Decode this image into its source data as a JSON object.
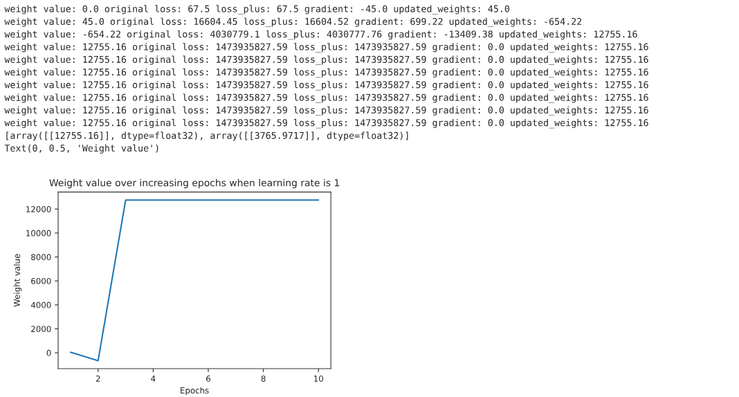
{
  "chart_data": {
    "type": "line",
    "title": "Weight value over increasing epochs when learning rate is 1",
    "xlabel": "Epochs",
    "ylabel": "Weight value",
    "x": [
      1,
      2,
      3,
      4,
      5,
      6,
      7,
      8,
      9,
      10
    ],
    "series": [
      {
        "color": "#1f77b4",
        "values": [
          45.0,
          -654.22,
          12755.16,
          12755.16,
          12755.16,
          12755.16,
          12755.16,
          12755.16,
          12755.16,
          12755.16
        ]
      }
    ],
    "xlim": [
      0.55,
      10.45
    ],
    "xticks": [
      2,
      4,
      6,
      8,
      10
    ],
    "ylim": [
      -1325,
      13425
    ],
    "yticks": [
      0,
      2000,
      4000,
      6000,
      8000,
      10000,
      12000
    ],
    "grid": false,
    "annotations": [
      "weight value: 0.0 original loss: 67.5 loss_plus: 67.5 gradient: -45.0 updated_weights: 45.0",
      "weight value: 45.0 original loss: 16604.45 loss_plus: 16604.52 gradient: 699.22 updated_weights: -654.22",
      "weight value: -654.22 original loss: 4030779.1 loss_plus: 4030777.76 gradient: -13409.38 updated_weights: 12755.16",
      "weight value: 12755.16 original loss: 1473935827.59 loss_plus: 1473935827.59 gradient: 0.0 updated_weights: 12755.16",
      "weight value: 12755.16 original loss: 1473935827.59 loss_plus: 1473935827.59 gradient: 0.0 updated_weights: 12755.16",
      "weight value: 12755.16 original loss: 1473935827.59 loss_plus: 1473935827.59 gradient: 0.0 updated_weights: 12755.16",
      "weight value: 12755.16 original loss: 1473935827.59 loss_plus: 1473935827.59 gradient: 0.0 updated_weights: 12755.16",
      "weight value: 12755.16 original loss: 1473935827.59 loss_plus: 1473935827.59 gradient: 0.0 updated_weights: 12755.16",
      "weight value: 12755.16 original loss: 1473935827.59 loss_plus: 1473935827.59 gradient: 0.0 updated_weights: 12755.16",
      "weight value: 12755.16 original loss: 1473935827.59 loss_plus: 1473935827.59 gradient: 0.0 updated_weights: 12755.16",
      "[array([[12755.16]], dtype=float32), array([[3765.9717]], dtype=float32)]",
      "Text(0, 0.5, 'Weight value')"
    ]
  }
}
